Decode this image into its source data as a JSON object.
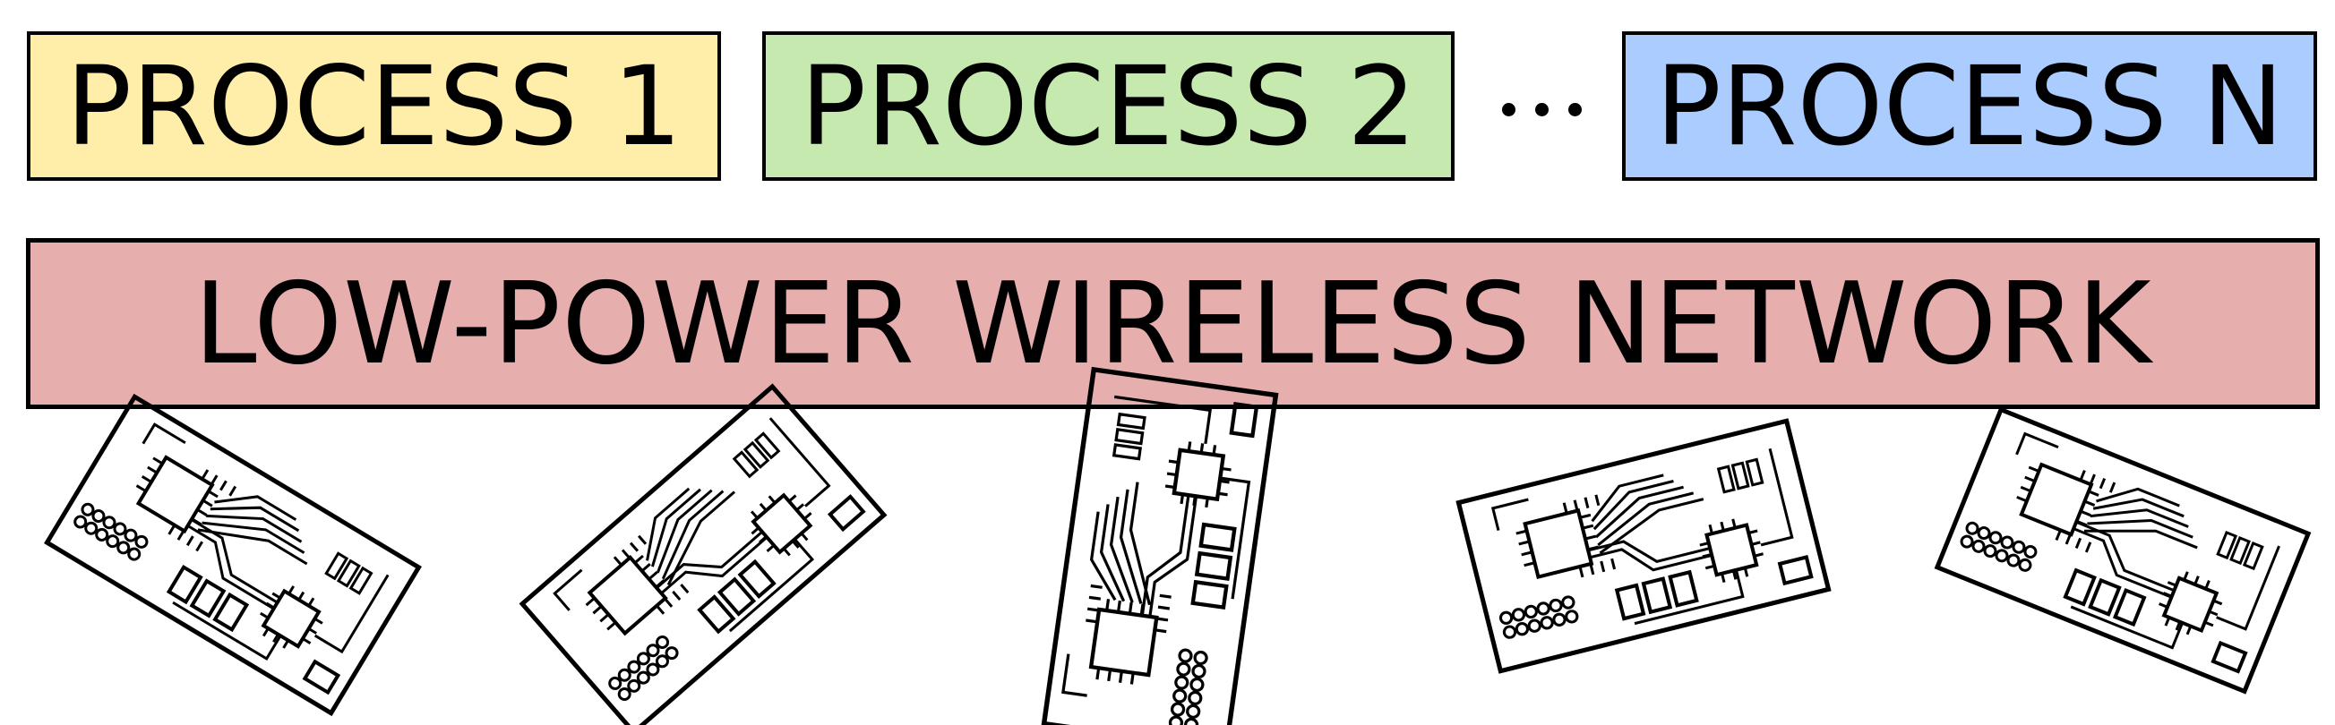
{
  "processes": [
    {
      "label": "PROCESS 1",
      "color": "#ffeeaa"
    },
    {
      "label": "PROCESS 2",
      "color": "#c6e9af"
    },
    {
      "label": "PROCESS N",
      "color": "#aaccff"
    }
  ],
  "network": {
    "label": "LOW-POWER WIRELESS NETWORK",
    "color": "#e7aeae"
  },
  "ellipsis_icon": "horizontal-ellipsis",
  "nodes": [
    {
      "icon": "circuit-board-icon"
    },
    {
      "icon": "circuit-board-icon"
    },
    {
      "icon": "circuit-board-icon"
    },
    {
      "icon": "circuit-board-icon"
    },
    {
      "icon": "circuit-board-icon"
    }
  ]
}
